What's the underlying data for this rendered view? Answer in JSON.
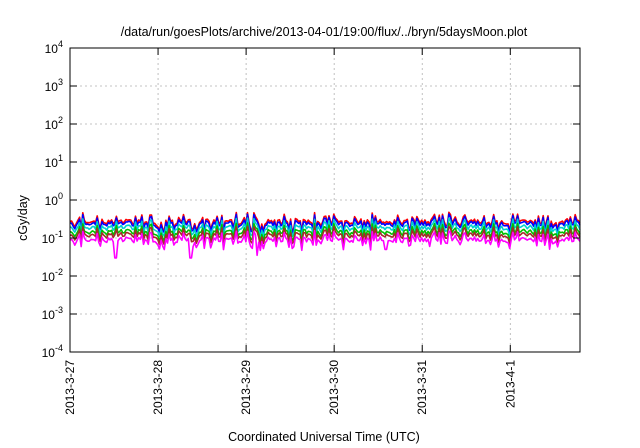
{
  "chart_data": {
    "type": "line",
    "title": "/data/run/goesPlots/archive/2013-04-01/19:00/flux/../bryn/5daysMoon.plot",
    "xlabel": "Coordinated Universal Time (UTC)",
    "ylabel": "cGy/day",
    "yscale": "log",
    "ylim": [
      0.0001,
      10000
    ],
    "xlim": [
      "2013-03-27",
      "2013-04-01T19:00"
    ],
    "y_ticks": [
      {
        "value": 0.0001,
        "base": "10",
        "exp": "-4"
      },
      {
        "value": 0.001,
        "base": "10",
        "exp": "-3"
      },
      {
        "value": 0.01,
        "base": "10",
        "exp": "-2"
      },
      {
        "value": 0.1,
        "base": "10",
        "exp": "-1"
      },
      {
        "value": 1,
        "base": "10",
        "exp": "0"
      },
      {
        "value": 10,
        "base": "10",
        "exp": "1"
      },
      {
        "value": 100,
        "base": "10",
        "exp": "2"
      },
      {
        "value": 1000,
        "base": "10",
        "exp": "3"
      },
      {
        "value": 10000,
        "base": "10",
        "exp": "4"
      }
    ],
    "x_ticks": [
      {
        "value": "2013-03-27",
        "label": "2013-3-27"
      },
      {
        "value": "2013-03-28",
        "label": "2013-3-28"
      },
      {
        "value": "2013-03-29",
        "label": "2013-3-29"
      },
      {
        "value": "2013-03-30",
        "label": "2013-3-30"
      },
      {
        "value": "2013-03-31",
        "label": "2013-3-31"
      },
      {
        "value": "2013-04-01",
        "label": "2013-4-1"
      }
    ],
    "grid": true,
    "series": [
      {
        "color": "#ff0000",
        "base": 0.27
      },
      {
        "color": "#0000ff",
        "base": 0.24
      },
      {
        "color": "#00d0d0",
        "base": 0.19
      },
      {
        "color": "#00c000",
        "base": 0.145
      },
      {
        "color": "#a52a2a",
        "base": 0.12
      },
      {
        "color": "#ff00ff",
        "base": 0.09
      }
    ],
    "dips": [
      {
        "x": "2013-03-27T12:30",
        "y": 0.03
      },
      {
        "x": "2013-03-28T09:00",
        "y": 0.03
      },
      {
        "x": "2013-03-29T03:00",
        "y": 0.035
      },
      {
        "x": "2013-03-30T14:00",
        "y": 0.05
      },
      {
        "x": "2013-03-31T02:00",
        "y": 0.06
      }
    ]
  }
}
